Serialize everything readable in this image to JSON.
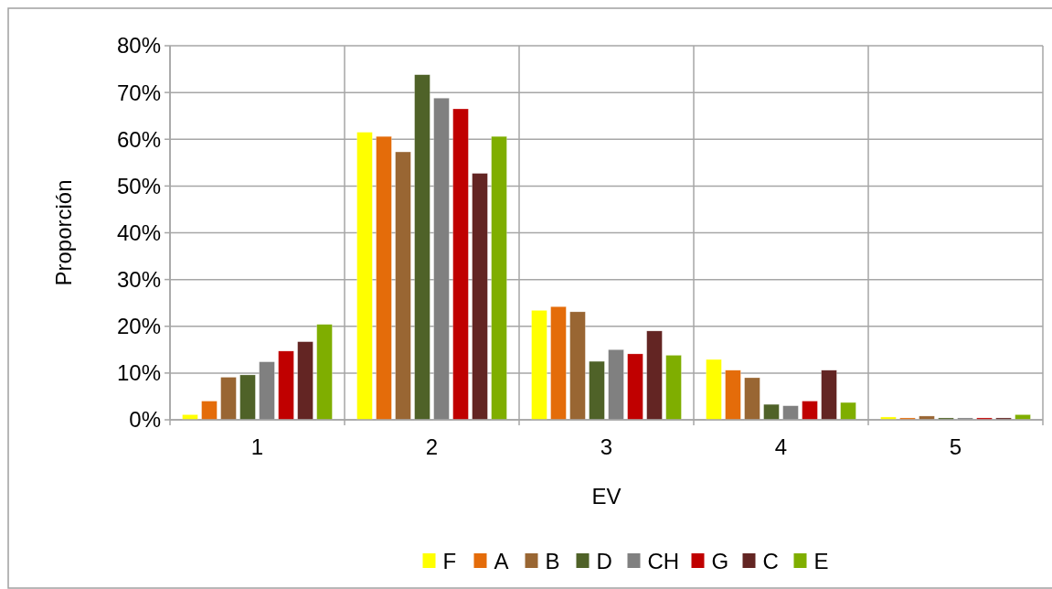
{
  "chart_data": {
    "type": "bar",
    "xlabel": "EV",
    "ylabel": "Proporción",
    "categories": [
      "1",
      "2",
      "3",
      "4",
      "5"
    ],
    "series": [
      {
        "name": "F",
        "color": "#ffff00",
        "values": [
          1.1,
          61.5,
          23.4,
          12.9,
          0.6
        ]
      },
      {
        "name": "A",
        "color": "#e46c0a",
        "values": [
          4.0,
          60.6,
          24.2,
          10.6,
          0.4
        ]
      },
      {
        "name": "B",
        "color": "#996633",
        "values": [
          9.1,
          57.3,
          23.1,
          9.0,
          0.8
        ]
      },
      {
        "name": "D",
        "color": "#4f6228",
        "values": [
          9.6,
          73.8,
          12.5,
          3.3,
          0.4
        ]
      },
      {
        "name": "CH",
        "color": "#808080",
        "values": [
          12.4,
          68.8,
          15.0,
          3.0,
          0.4
        ]
      },
      {
        "name": "G",
        "color": "#c00000",
        "values": [
          14.7,
          66.5,
          14.1,
          4.0,
          0.4
        ]
      },
      {
        "name": "C",
        "color": "#632523",
        "values": [
          16.7,
          52.7,
          19.0,
          10.6,
          0.4
        ]
      },
      {
        "name": "E",
        "color": "#7fae00",
        "values": [
          20.4,
          60.6,
          13.8,
          3.7,
          1.1
        ]
      }
    ],
    "ylim": [
      0,
      80
    ],
    "yticks": [
      {
        "value": 0,
        "label": "0%"
      },
      {
        "value": 10,
        "label": "10%"
      },
      {
        "value": 20,
        "label": "20%"
      },
      {
        "value": 30,
        "label": "30%"
      },
      {
        "value": 40,
        "label": "40%"
      },
      {
        "value": 50,
        "label": "50%"
      },
      {
        "value": 60,
        "label": "60%"
      },
      {
        "value": 70,
        "label": "70%"
      },
      {
        "value": 80,
        "label": "80%"
      }
    ],
    "grid": true,
    "legend": "bottom"
  }
}
